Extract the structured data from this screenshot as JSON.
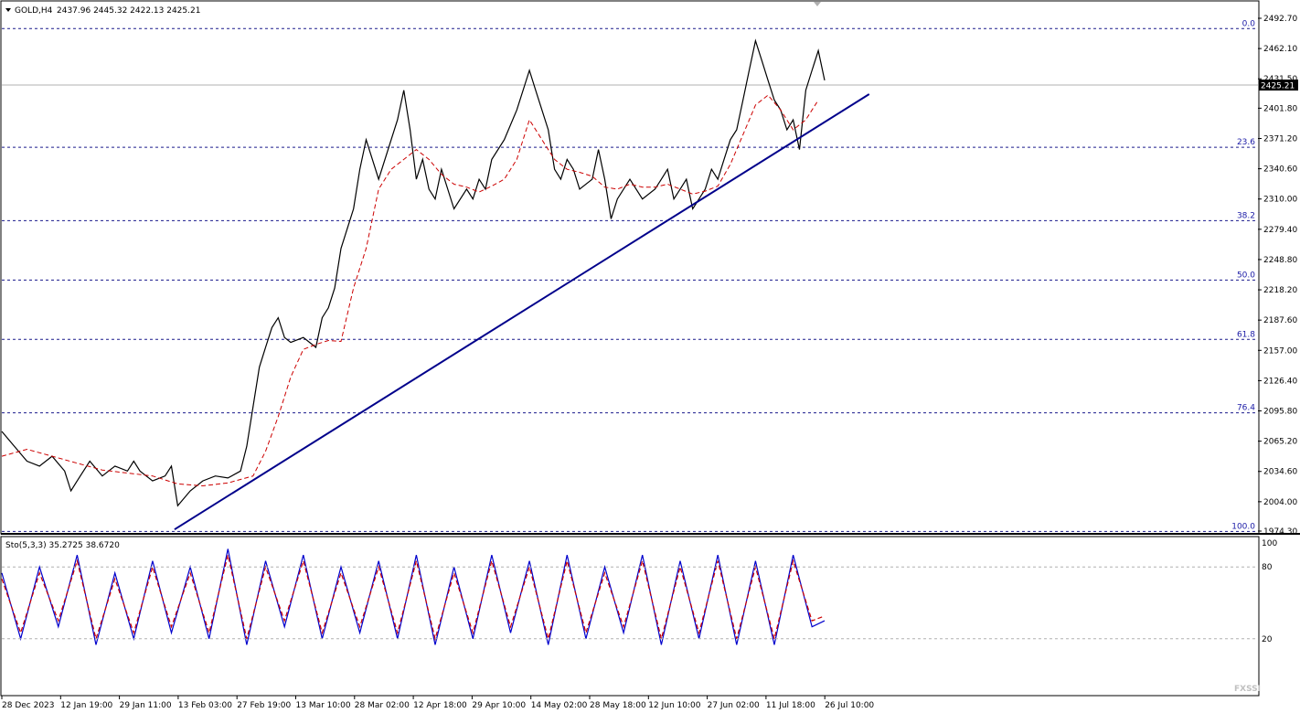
{
  "chart_data": [
    {
      "type": "line",
      "title": "GOLD,H4",
      "ohlc": {
        "open": 2437.96,
        "high": 2445.32,
        "low": 2422.13,
        "close": 2425.21
      },
      "ohlc_text": "2437.96 2445.32 2422.13 2425.21",
      "last_price": 2425.21,
      "last_price_label": "2425.21",
      "ylim": [
        1974.3,
        2492.7
      ],
      "y_ticks": [
        "2492.70",
        "2462.10",
        "2431.50",
        "2401.80",
        "2371.20",
        "2340.60",
        "2310.00",
        "2279.40",
        "2248.80",
        "2218.20",
        "2187.60",
        "2157.00",
        "2126.40",
        "2095.80",
        "2065.20",
        "2034.60",
        "2004.00",
        "1974.30"
      ],
      "x_tick_labels": [
        "28 Dec 2023",
        "12 Jan 19:00",
        "29 Jan 11:00",
        "13 Feb 03:00",
        "27 Feb 19:00",
        "13 Mar 10:00",
        "28 Mar 02:00",
        "12 Apr 18:00",
        "29 Apr 10:00",
        "14 May 02:00",
        "28 May 18:00",
        "12 Jun 10:00",
        "27 Jun 02:00",
        "11 Jul 18:00",
        "26 Jul 10:00"
      ],
      "fibonacci": [
        {
          "label": "0.0",
          "price": 2482.3
        },
        {
          "label": "23.6",
          "price": 2362.3
        },
        {
          "label": "38.2",
          "price": 2288.1
        },
        {
          "label": "50.0",
          "price": 2228.1
        },
        {
          "label": "61.8",
          "price": 2168.1
        },
        {
          "label": "76.4",
          "price": 2093.9
        },
        {
          "label": "100.0",
          "price": 1973.9
        }
      ],
      "trendline": {
        "start": {
          "x": 0.1375,
          "price": 1976
        },
        "end": {
          "x": 0.6905,
          "price": 2416
        }
      },
      "series": [
        {
          "color": "#000000",
          "x": [
            0,
            0.01,
            0.02,
            0.03,
            0.04,
            0.05,
            0.055,
            0.06,
            0.07,
            0.08,
            0.09,
            0.1,
            0.105,
            0.11,
            0.12,
            0.13,
            0.135,
            0.14,
            0.15,
            0.16,
            0.17,
            0.18,
            0.19,
            0.195,
            0.2,
            0.205,
            0.21,
            0.215,
            0.22,
            0.225,
            0.23,
            0.24,
            0.25,
            0.255,
            0.26,
            0.265,
            0.27,
            0.28,
            0.285,
            0.29,
            0.3,
            0.31,
            0.315,
            0.32,
            0.325,
            0.33,
            0.335,
            0.34,
            0.345,
            0.35,
            0.36,
            0.37,
            0.375,
            0.38,
            0.385,
            0.39,
            0.4,
            0.41,
            0.42,
            0.425,
            0.43,
            0.435,
            0.44,
            0.445,
            0.45,
            0.455,
            0.46,
            0.47,
            0.475,
            0.48,
            0.485,
            0.49,
            0.5,
            0.51,
            0.52,
            0.525,
            0.53,
            0.535,
            0.54,
            0.545,
            0.55,
            0.555,
            0.56,
            0.565,
            0.57,
            0.575,
            0.58,
            0.585,
            0.59,
            0.595,
            0.6,
            0.605,
            0.61,
            0.615,
            0.62,
            0.625,
            0.63,
            0.635,
            0.64,
            0.645,
            0.65,
            0.655
          ],
          "values": [
            2075,
            2060,
            2045,
            2040,
            2050,
            2035,
            2015,
            2025,
            2045,
            2030,
            2040,
            2035,
            2045,
            2035,
            2025,
            2030,
            2040,
            2000,
            2015,
            2025,
            2030,
            2028,
            2035,
            2060,
            2100,
            2140,
            2160,
            2180,
            2190,
            2170,
            2165,
            2170,
            2160,
            2190,
            2200,
            2220,
            2260,
            2300,
            2340,
            2370,
            2330,
            2370,
            2390,
            2420,
            2380,
            2330,
            2350,
            2320,
            2310,
            2340,
            2300,
            2320,
            2310,
            2330,
            2320,
            2350,
            2370,
            2400,
            2440,
            2420,
            2400,
            2380,
            2340,
            2330,
            2350,
            2340,
            2320,
            2330,
            2360,
            2330,
            2290,
            2310,
            2330,
            2310,
            2320,
            2330,
            2340,
            2310,
            2320,
            2330,
            2300,
            2310,
            2320,
            2340,
            2330,
            2350,
            2370,
            2380,
            2410,
            2440,
            2470,
            2450,
            2430,
            2410,
            2400,
            2380,
            2390,
            2360,
            2420,
            2440,
            2460,
            2430
          ]
        },
        {
          "color": "#cc0000",
          "dashed": true,
          "x": [
            0,
            0.02,
            0.04,
            0.06,
            0.08,
            0.1,
            0.12,
            0.14,
            0.16,
            0.18,
            0.2,
            0.21,
            0.22,
            0.23,
            0.24,
            0.25,
            0.26,
            0.27,
            0.28,
            0.29,
            0.3,
            0.31,
            0.32,
            0.33,
            0.34,
            0.35,
            0.36,
            0.37,
            0.38,
            0.39,
            0.4,
            0.41,
            0.42,
            0.43,
            0.44,
            0.45,
            0.46,
            0.47,
            0.48,
            0.49,
            0.5,
            0.51,
            0.52,
            0.53,
            0.54,
            0.55,
            0.56,
            0.57,
            0.58,
            0.59,
            0.6,
            0.61,
            0.62,
            0.63,
            0.64,
            0.65
          ],
          "values": [
            2050,
            2057,
            2050,
            2043,
            2036,
            2033,
            2030,
            2022,
            2020,
            2023,
            2030,
            2055,
            2090,
            2130,
            2158,
            2163,
            2167,
            2166,
            2220,
            2260,
            2320,
            2340,
            2350,
            2360,
            2350,
            2335,
            2325,
            2322,
            2317,
            2323,
            2330,
            2350,
            2390,
            2370,
            2350,
            2340,
            2337,
            2333,
            2322,
            2320,
            2325,
            2322,
            2322,
            2325,
            2320,
            2315,
            2318,
            2323,
            2345,
            2375,
            2405,
            2415,
            2400,
            2380,
            2390,
            2410
          ]
        },
        {
          "name": "Sto",
          "color": "#0000cc",
          "panel": "stochastic",
          "x": [
            0,
            0.015,
            0.03,
            0.045,
            0.06,
            0.075,
            0.09,
            0.105,
            0.12,
            0.135,
            0.15,
            0.165,
            0.18,
            0.195,
            0.21,
            0.225,
            0.24,
            0.255,
            0.27,
            0.285,
            0.3,
            0.315,
            0.33,
            0.345,
            0.36,
            0.375,
            0.39,
            0.405,
            0.42,
            0.435,
            0.45,
            0.465,
            0.48,
            0.495,
            0.51,
            0.525,
            0.54,
            0.555,
            0.57,
            0.585,
            0.6,
            0.615,
            0.63,
            0.645,
            0.655
          ],
          "values": [
            75,
            20,
            80,
            30,
            90,
            15,
            75,
            20,
            85,
            25,
            80,
            20,
            95,
            15,
            85,
            30,
            90,
            20,
            80,
            25,
            85,
            20,
            90,
            15,
            80,
            20,
            90,
            25,
            85,
            15,
            90,
            20,
            80,
            25,
            90,
            15,
            85,
            20,
            90,
            15,
            85,
            15,
            90,
            30,
            35
          ]
        },
        {
          "color": "#cc0000",
          "dashed": true,
          "panel": "stochastic",
          "x": [
            0,
            0.015,
            0.03,
            0.045,
            0.06,
            0.075,
            0.09,
            0.105,
            0.12,
            0.135,
            0.15,
            0.165,
            0.18,
            0.195,
            0.21,
            0.225,
            0.24,
            0.255,
            0.27,
            0.285,
            0.3,
            0.315,
            0.33,
            0.345,
            0.36,
            0.375,
            0.39,
            0.405,
            0.42,
            0.435,
            0.45,
            0.465,
            0.48,
            0.495,
            0.51,
            0.525,
            0.54,
            0.555,
            0.57,
            0.585,
            0.6,
            0.615,
            0.63,
            0.645,
            0.655
          ],
          "values": [
            70,
            25,
            75,
            35,
            85,
            20,
            70,
            25,
            80,
            30,
            75,
            25,
            90,
            20,
            80,
            35,
            85,
            25,
            75,
            30,
            80,
            25,
            85,
            20,
            75,
            25,
            85,
            30,
            80,
            20,
            85,
            25,
            75,
            30,
            85,
            20,
            80,
            25,
            85,
            20,
            80,
            20,
            85,
            35,
            39
          ]
        }
      ]
    },
    {
      "type": "line",
      "title": "Sto(5,3,3) 35.2725 38.6720",
      "ylim": [
        0,
        100
      ],
      "levels": [
        80,
        20
      ],
      "y_ticks": [
        "100",
        "80",
        "20"
      ]
    }
  ],
  "watermark": "FXSSI"
}
